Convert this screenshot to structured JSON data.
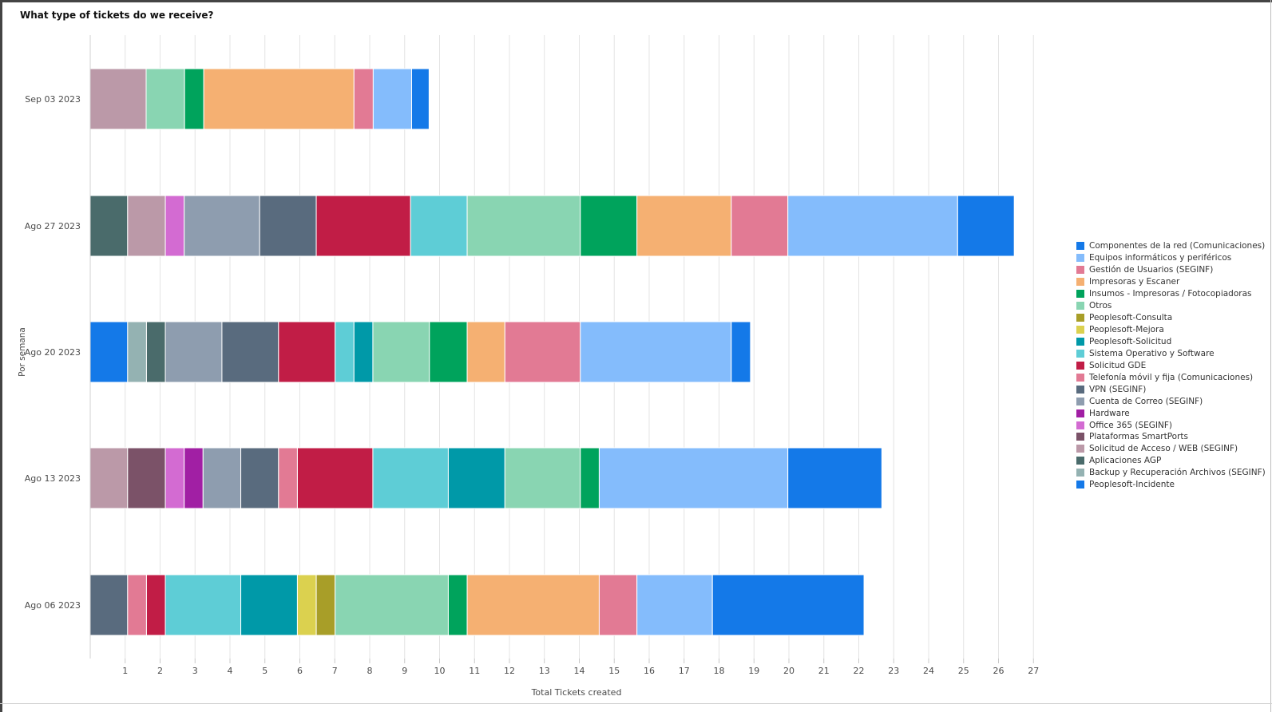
{
  "title": "What type of tickets do we receive?",
  "chart_data": {
    "type": "bar",
    "orientation": "horizontal",
    "stacked": true,
    "title": "What type of tickets do we receive?",
    "xlabel": "Total Tickets created",
    "ylabel": "Por semana",
    "xlim": [
      0,
      27
    ],
    "xticks": [
      1,
      2,
      3,
      4,
      5,
      6,
      7,
      8,
      9,
      10,
      11,
      12,
      13,
      14,
      15,
      16,
      17,
      18,
      19,
      20,
      21,
      22,
      23,
      24,
      25,
      26,
      27
    ],
    "grid": true,
    "legend_position": "right",
    "categories": [
      "Sep 03 2023",
      "Ago 27 2023",
      "Ago 20 2023",
      "Ago 13 2023",
      "Ago 06 2023"
    ],
    "series_names": [
      "Componentes de la red (Comunicaciones)",
      "Equipos informáticos y periféricos",
      "Gestión de Usuarios (SEGINF)",
      "Impresoras y Escaner",
      "Insumos - Impresoras / Fotocopiadoras",
      "Otros",
      "Peoplesoft-Consulta",
      "Peoplesoft-Mejora",
      "Peoplesoft-Solicitud",
      "Sistema Operativo y Software",
      "Solicitud GDE",
      "Telefonía móvil y fija (Comunicaciones)",
      "VPN (SEGINF)",
      "Cuenta de Correo (SEGINF)",
      "Hardware",
      "Office 365 (SEGINF)",
      "Plataformas SmartPorts",
      "Solicitud de Acceso / WEB (SEGINF)",
      "Aplicaciones AGP",
      "Backup y Recuperación Archivos (SEGINF)",
      "Peoplesoft-Incidente"
    ],
    "series_colors": [
      "#1479e8",
      "#84bcfc",
      "#e27a94",
      "#f5b072",
      "#00a35c",
      "#89d5b2",
      "#a89e28",
      "#dbd14f",
      "#0099a8",
      "#5ecdd6",
      "#c11d46",
      "#e27a94",
      "#596b7e",
      "#8e9daf",
      "#a11fa4",
      "#d36bd2",
      "#7b5268",
      "#bb99a8",
      "#4a6b6b",
      "#94b2b2",
      "#1479e8"
    ],
    "bars": [
      {
        "category": "Sep 03 2023",
        "total": 9.7,
        "segments": [
          {
            "series": "Solicitud de Acceso / WEB (SEGINF)",
            "value": 1.6
          },
          {
            "series": "Otros",
            "value": 1.1
          },
          {
            "series": "Insumos - Impresoras / Fotocopiadoras",
            "value": 0.55
          },
          {
            "series": "Impresoras y Escaner",
            "value": 4.3
          },
          {
            "series": "Gestión de Usuarios (SEGINF)",
            "value": 0.55
          },
          {
            "series": "Equipos informáticos y periféricos",
            "value": 1.1
          },
          {
            "series": "Componentes de la red (Comunicaciones)",
            "value": 0.5
          }
        ]
      },
      {
        "category": "Ago 27 2023",
        "total": 26.45,
        "segments": [
          {
            "series": "Aplicaciones AGP",
            "value": 1.07
          },
          {
            "series": "Solicitud de Acceso / WEB (SEGINF)",
            "value": 1.08
          },
          {
            "series": "Office 365 (SEGINF)",
            "value": 0.54
          },
          {
            "series": "Cuenta de Correo (SEGINF)",
            "value": 2.16
          },
          {
            "series": "VPN (SEGINF)",
            "value": 1.62
          },
          {
            "series": "Solicitud GDE",
            "value": 2.7
          },
          {
            "series": "Sistema Operativo y Software",
            "value": 1.62
          },
          {
            "series": "Otros",
            "value": 3.24
          },
          {
            "series": "Insumos - Impresoras / Fotocopiadoras",
            "value": 1.62
          },
          {
            "series": "Impresoras y Escaner",
            "value": 2.7
          },
          {
            "series": "Gestión de Usuarios (SEGINF)",
            "value": 1.62
          },
          {
            "series": "Equipos informáticos y periféricos",
            "value": 4.86
          },
          {
            "series": "Componentes de la red (Comunicaciones)",
            "value": 1.62
          }
        ]
      },
      {
        "category": "Ago 20 2023",
        "total": 18.9,
        "segments": [
          {
            "series": "Peoplesoft-Incidente",
            "value": 1.07
          },
          {
            "series": "Backup y Recuperación Archivos (SEGINF)",
            "value": 0.54
          },
          {
            "series": "Aplicaciones AGP",
            "value": 0.54
          },
          {
            "series": "Cuenta de Correo (SEGINF)",
            "value": 1.62
          },
          {
            "series": "VPN (SEGINF)",
            "value": 1.62
          },
          {
            "series": "Solicitud GDE",
            "value": 1.62
          },
          {
            "series": "Sistema Operativo y Software",
            "value": 0.54
          },
          {
            "series": "Peoplesoft-Solicitud",
            "value": 0.54
          },
          {
            "series": "Otros",
            "value": 1.62
          },
          {
            "series": "Insumos - Impresoras / Fotocopiadoras",
            "value": 1.08
          },
          {
            "series": "Impresoras y Escaner",
            "value": 1.08
          },
          {
            "series": "Telefonía móvil y fija (Comunicaciones)",
            "value": 2.16
          },
          {
            "series": "Equipos informáticos y periféricos",
            "value": 4.32
          },
          {
            "series": "Componentes de la red (Comunicaciones)",
            "value": 0.55
          }
        ]
      },
      {
        "category": "Ago 13 2023",
        "total": 22.7,
        "segments": [
          {
            "series": "Solicitud de Acceso / WEB (SEGINF)",
            "value": 1.07
          },
          {
            "series": "Plataformas SmartPorts",
            "value": 1.08
          },
          {
            "series": "Office 365 (SEGINF)",
            "value": 0.54
          },
          {
            "series": "Hardware",
            "value": 0.54
          },
          {
            "series": "Cuenta de Correo (SEGINF)",
            "value": 1.08
          },
          {
            "series": "VPN (SEGINF)",
            "value": 1.08
          },
          {
            "series": "Gestión de Usuarios (SEGINF)",
            "value": 0.54
          },
          {
            "series": "Solicitud GDE",
            "value": 2.16
          },
          {
            "series": "Sistema Operativo y Software",
            "value": 2.16
          },
          {
            "series": "Peoplesoft-Solicitud",
            "value": 1.62
          },
          {
            "series": "Otros",
            "value": 2.16
          },
          {
            "series": "Insumos - Impresoras / Fotocopiadoras",
            "value": 0.54
          },
          {
            "series": "Equipos informáticos y periféricos",
            "value": 5.4
          },
          {
            "series": "Componentes de la red (Comunicaciones)",
            "value": 2.69
          }
        ]
      },
      {
        "category": "Ago 06 2023",
        "total": 22.15,
        "segments": [
          {
            "series": "VPN (SEGINF)",
            "value": 1.07
          },
          {
            "series": "Gestión de Usuarios (SEGINF)",
            "value": 0.54
          },
          {
            "series": "Solicitud GDE",
            "value": 0.54
          },
          {
            "series": "Sistema Operativo y Software",
            "value": 2.16
          },
          {
            "series": "Peoplesoft-Solicitud",
            "value": 1.62
          },
          {
            "series": "Peoplesoft-Mejora",
            "value": 0.54
          },
          {
            "series": "Peoplesoft-Consulta",
            "value": 0.54
          },
          {
            "series": "Otros",
            "value": 3.24
          },
          {
            "series": "Insumos - Impresoras / Fotocopiadoras",
            "value": 0.54
          },
          {
            "series": "Impresoras y Escaner",
            "value": 3.78
          },
          {
            "series": "Gestión de Usuarios (SEGINF)",
            "value": 1.08
          },
          {
            "series": "Equipos informáticos y periféricos",
            "value": 2.16
          },
          {
            "series": "Componentes de la red (Comunicaciones)",
            "value": 4.34
          }
        ]
      }
    ]
  }
}
